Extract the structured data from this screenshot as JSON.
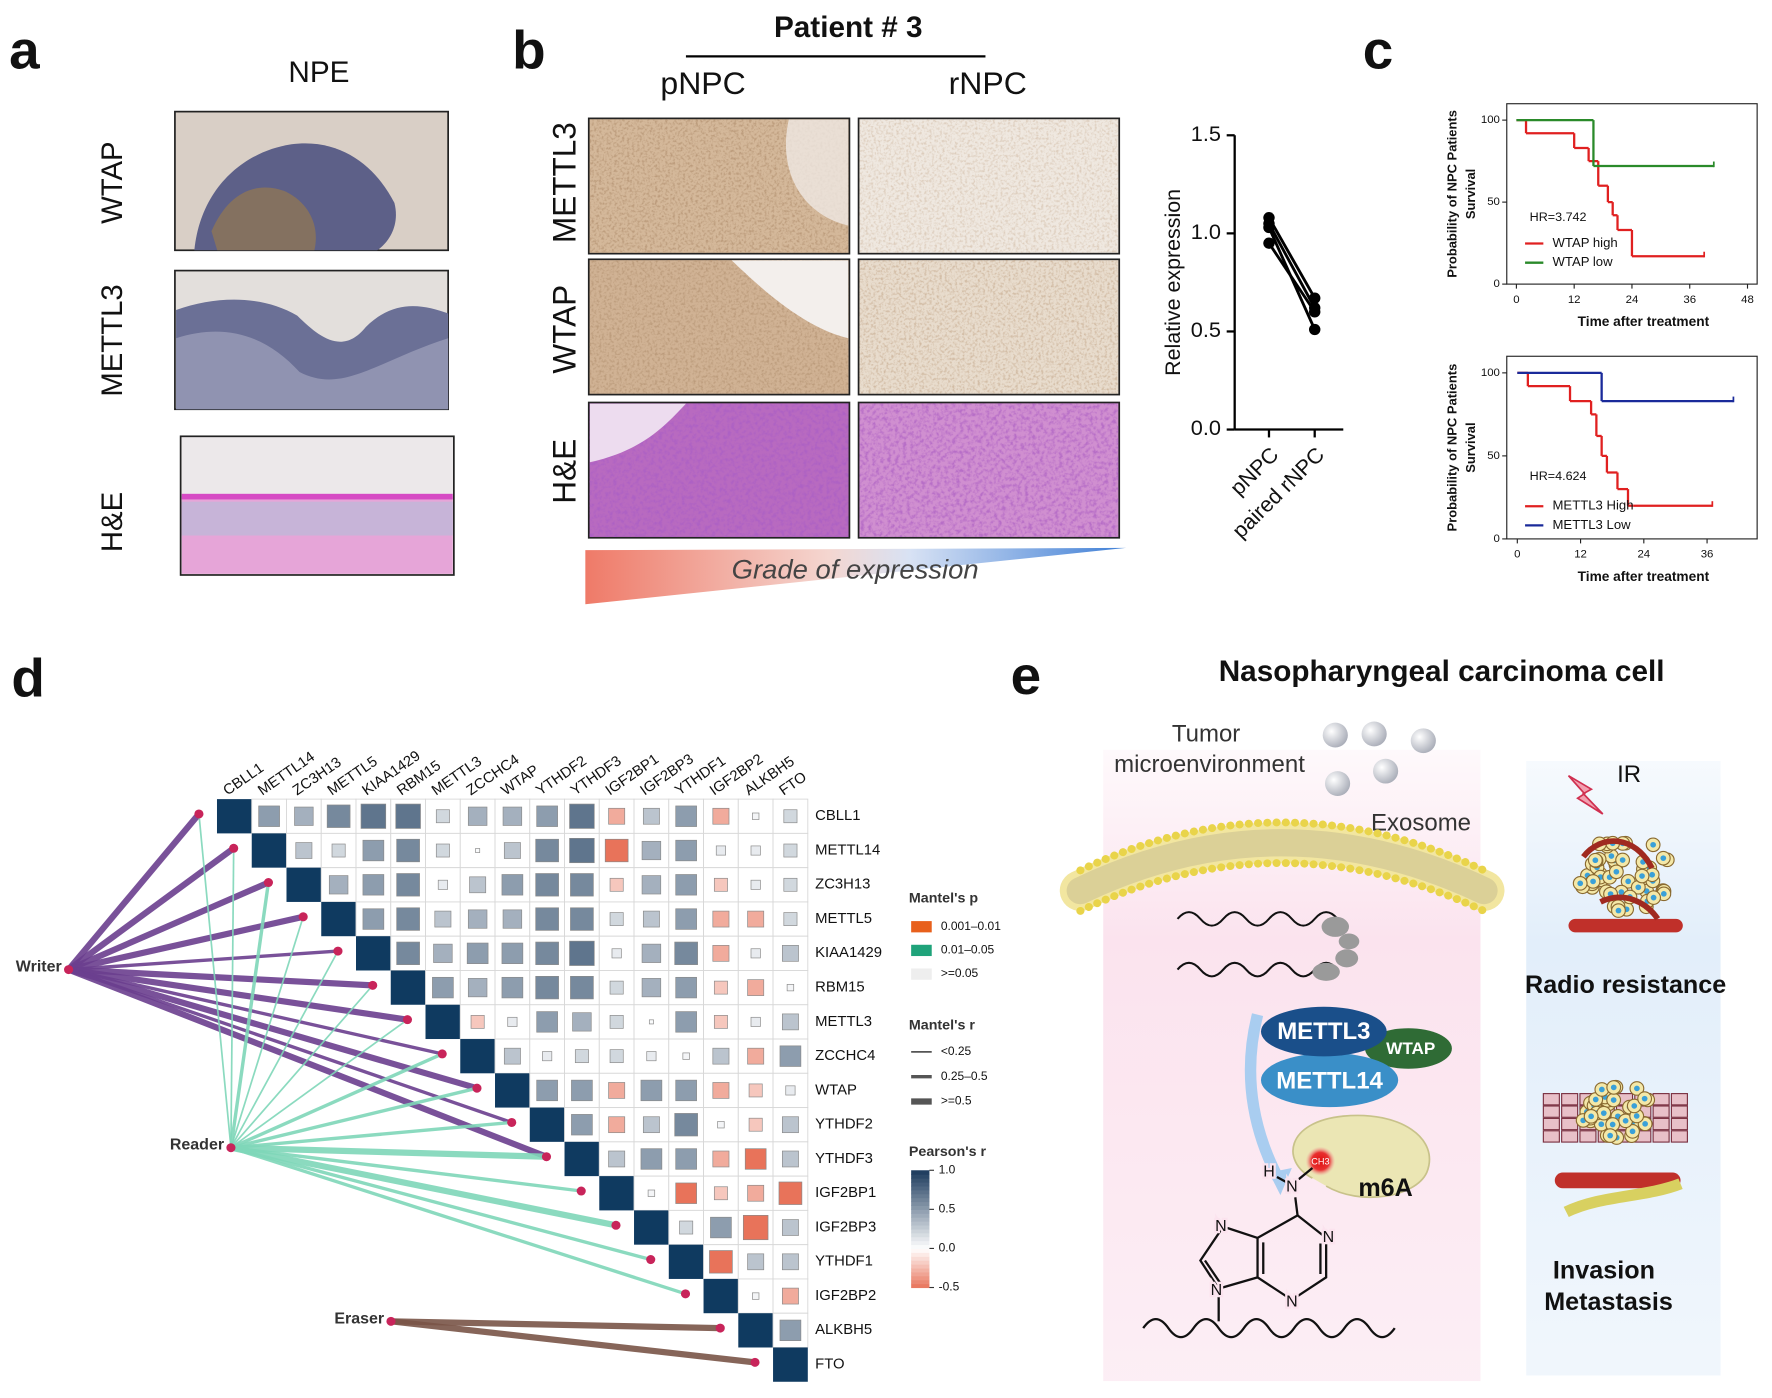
{
  "panel_a": {
    "label": "a",
    "title": "NPE",
    "rows": [
      "WTAP",
      "METTL3",
      "H&E"
    ]
  },
  "panel_b": {
    "label": "b",
    "title": "Patient # 3",
    "columns": [
      "pNPC",
      "rNPC"
    ],
    "rows": [
      "METTL3",
      "WTAP",
      "H&E"
    ],
    "gradient_label": "Grade of expression"
  },
  "panel_c": {
    "label": "c"
  },
  "panel_d": {
    "label": "d"
  },
  "panel_e": {
    "label": "e",
    "title": "Nasopharyngeal carcinoma cell",
    "environment": [
      "Tumor",
      "microenvironment"
    ],
    "exosome": "Exosome",
    "complex": [
      "METTL3",
      "WTAP",
      "METTL14"
    ],
    "methyl": "CH3",
    "modification": "m6A",
    "atoms": [
      "H",
      "N",
      "N",
      "N",
      "N",
      "N"
    ],
    "stimulus": "IR",
    "outcome_1": "Radio resistance",
    "outcome_2": [
      "Invasion",
      "Metastasis"
    ]
  },
  "chart_data": [
    {
      "type": "paired",
      "ylabel": "Relative expression",
      "categories": [
        "pNPC",
        "paired rNPC"
      ],
      "color": "#000000",
      "series": [
        {
          "values": [
            1.08,
            0.67
          ]
        },
        {
          "values": [
            1.05,
            0.62
          ]
        },
        {
          "values": [
            0.95,
            0.6
          ]
        },
        {
          "values": [
            1.03,
            0.51
          ]
        }
      ],
      "ylim": [
        0,
        1.5
      ],
      "yticks": [
        {
          "value": 0,
          "label": "0.0"
        },
        {
          "value": 0.5,
          "label": "0.5"
        },
        {
          "value": 1,
          "label": "1.0"
        },
        {
          "value": 1.5,
          "label": "1.5"
        }
      ]
    },
    {
      "type": "step",
      "ylabel": [
        "Probability of NPC Patients",
        "Survival"
      ],
      "xlabel": "Time after treatment",
      "annotation": "HR=3.742",
      "series": [
        {
          "name": "WTAP high",
          "color": "#e02020",
          "x": [
            0,
            2,
            12,
            15,
            17,
            19,
            20,
            21,
            24,
            39
          ],
          "values": [
            100,
            92,
            83,
            75,
            60,
            50,
            42,
            33,
            17,
            17
          ]
        },
        {
          "name": "WTAP low",
          "color": "#2a8a2a",
          "x": [
            0,
            16,
            41
          ],
          "values": [
            100,
            72,
            72
          ]
        }
      ],
      "xlim": [
        -2,
        50
      ],
      "xticks": [
        0,
        12,
        24,
        36,
        48
      ],
      "ylim": [
        0,
        110
      ],
      "yticks": [
        0,
        50,
        100
      ]
    },
    {
      "type": "step",
      "ylabel": [
        "Probability of NPC Patients",
        "Survival"
      ],
      "xlabel": "Time after treatment",
      "annotation": "HR=4.624",
      "series": [
        {
          "name": "METTL3 High",
          "color": "#e02020",
          "x": [
            0,
            2,
            10,
            14,
            15,
            16,
            17,
            19,
            21,
            22,
            37
          ],
          "values": [
            100,
            92,
            83,
            75,
            62,
            50,
            40,
            30,
            20,
            20,
            20
          ]
        },
        {
          "name": "METTL3 Low",
          "color": "#1a2a9a",
          "x": [
            0,
            16,
            41
          ],
          "values": [
            100,
            83,
            83
          ]
        }
      ],
      "xlim": [
        -2,
        45.5
      ],
      "xticks": [
        0,
        12,
        24,
        36
      ],
      "ylim": [
        0,
        110
      ],
      "yticks": [
        0,
        50,
        100
      ]
    },
    {
      "type": "heatmap",
      "genes": [
        "CBLL1",
        "METTL14",
        "ZC3H13",
        "METTL5",
        "KIAA1429",
        "RBM15",
        "METTL3",
        "ZCCHC4",
        "WTAP",
        "YTHDF2",
        "YTHDF3",
        "IGF2BP1",
        "IGF2BP3",
        "YTHDF1",
        "IGF2BP2",
        "ALKBH5",
        "FTO"
      ],
      "values": [
        [
          1,
          0.5,
          0.4,
          0.6,
          0.7,
          0.7,
          0.2,
          0.4,
          0.4,
          0.5,
          0.7,
          -0.3,
          0.3,
          0.5,
          -0.3,
          0.05,
          0.2
        ],
        [
          1,
          0.3,
          0.2,
          0.5,
          0.6,
          0.2,
          0.02,
          0.3,
          0.6,
          0.7,
          -0.6,
          0.4,
          0.5,
          0.1,
          0.1,
          0.2
        ],
        [
          1,
          0.4,
          0.5,
          0.6,
          0.1,
          0.3,
          0.5,
          0.6,
          0.6,
          -0.2,
          0.4,
          0.5,
          -0.2,
          0.1,
          0.2
        ],
        [
          1,
          0.5,
          0.6,
          0.3,
          0.4,
          0.4,
          0.6,
          0.6,
          0.2,
          0.3,
          0.5,
          -0.3,
          -0.3,
          0.2
        ],
        [
          1,
          0.6,
          0.4,
          0.5,
          0.5,
          0.6,
          0.7,
          0.1,
          0.4,
          0.6,
          -0.3,
          0.1,
          0.3
        ],
        [
          1,
          0.5,
          0.4,
          0.5,
          0.6,
          0.6,
          0.2,
          0.4,
          0.5,
          -0.2,
          -0.3,
          0.05
        ],
        [
          1,
          -0.2,
          0.1,
          0.5,
          0.4,
          0.2,
          0.02,
          0.5,
          -0.2,
          0.1,
          0.3
        ],
        [
          1,
          0.3,
          0.1,
          0.2,
          0.2,
          0.1,
          0.05,
          0.3,
          -0.3,
          0.5
        ],
        [
          1,
          0.5,
          0.5,
          -0.3,
          0.5,
          0.5,
          -0.3,
          -0.2,
          0.1
        ],
        [
          1,
          0.5,
          -0.3,
          0.3,
          0.6,
          0.05,
          -0.2,
          0.3
        ],
        [
          1,
          0.3,
          0.5,
          0.5,
          -0.3,
          -0.5,
          0.3
        ],
        [
          1,
          0.05,
          -0.5,
          -0.2,
          -0.3,
          -0.6
        ],
        [
          1,
          0.2,
          0.5,
          -0.7,
          0.3
        ],
        [
          1,
          -0.6,
          0.3,
          0.3
        ],
        [
          1,
          0.05,
          -0.3
        ],
        [
          1,
          0.5
        ],
        [
          1
        ]
      ],
      "groups": [
        {
          "name": "Writer",
          "color": "#6b3f8f",
          "targets": [
            0,
            1,
            2,
            3,
            4,
            5,
            6,
            7,
            8,
            9,
            10
          ],
          "r_class": [
            2,
            2,
            2,
            2,
            1,
            2,
            2,
            1,
            2,
            1,
            2
          ]
        },
        {
          "name": "Reader",
          "color": "#7fd7b9",
          "targets": [
            0,
            1,
            2,
            3,
            4,
            5,
            6,
            7,
            8,
            9,
            10,
            11,
            12,
            13,
            14
          ],
          "r_class": [
            0,
            0,
            1,
            0,
            0,
            0,
            0,
            1,
            1,
            1,
            2,
            1,
            2,
            1,
            1
          ]
        },
        {
          "name": "Eraser",
          "color": "#7a5548",
          "targets": [
            15,
            16
          ],
          "r_class": [
            2,
            2
          ]
        }
      ],
      "mantel_p": {
        "title": "Mantel's p",
        "labels": [
          "0.001–0.01",
          "0.01–0.05",
          ">=0.05"
        ],
        "colors": [
          "#e8601c",
          "#1fa37a",
          "#eeeeee"
        ]
      },
      "mantel_r": {
        "title": "Mantel's r",
        "labels": [
          "<0.25",
          "0.25–0.5",
          ">=0.5"
        ]
      },
      "colorbar": {
        "title": "Pearson's r",
        "lim": [
          -0.5,
          1
        ],
        "colors": [
          "#e8735a",
          "#ffffff",
          "#1b3a5c"
        ],
        "ticks": [
          {
            "value": 1,
            "label": "1.0"
          },
          0.5,
          {
            "value": 0,
            "label": "0.0"
          },
          -0.5
        ]
      }
    }
  ]
}
